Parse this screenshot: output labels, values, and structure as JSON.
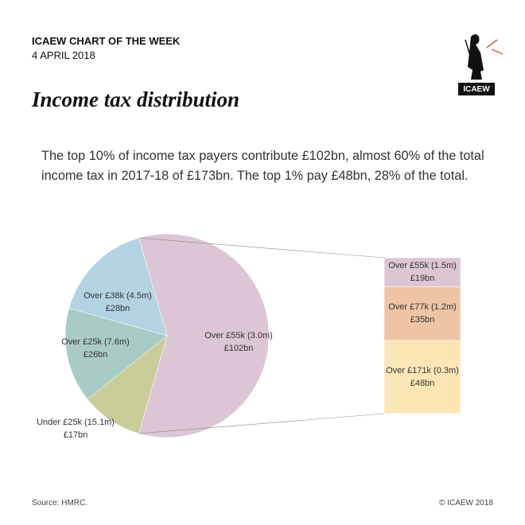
{
  "chart_data": {
    "type": "pie",
    "kicker": "ICAEW CHART OF THE WEEK",
    "date": "4 APRIL 2018",
    "title": "Income tax distribution",
    "subtitle": "The top 10% of income tax payers contribute £102bn, almost 60% of the total income tax in 2017-18 of £173bn. The top 1% pay £48bn, 28% of the total.",
    "logo_text": "ICAEW",
    "source": "Source: HMRC.",
    "copyright": "© ICAEW 2018",
    "categories": [
      "Over £55k (3.0m)",
      "Under £25k (15.1m)",
      "Over £25k (7.6m)",
      "Over £38k (4.5m)"
    ],
    "values": [
      102,
      17,
      26,
      28
    ],
    "value_labels": [
      "£102bn",
      "£17bn",
      "£26bn",
      "£28bn"
    ],
    "colors": [
      "#dcc6d5",
      "#c9cd9a",
      "#a9cbc5",
      "#b4d3e2"
    ],
    "breakdown": {
      "categories": [
        "Over £55k (1.5m)",
        "Over £77k (1.2m)",
        "Over £171k (0.3m)"
      ],
      "values": [
        19,
        35,
        48
      ],
      "value_labels": [
        "£19bn",
        "£35bn",
        "£48bn"
      ],
      "colors": [
        "#dcc6d5",
        "#eec4a4",
        "#fde6b6"
      ]
    }
  }
}
